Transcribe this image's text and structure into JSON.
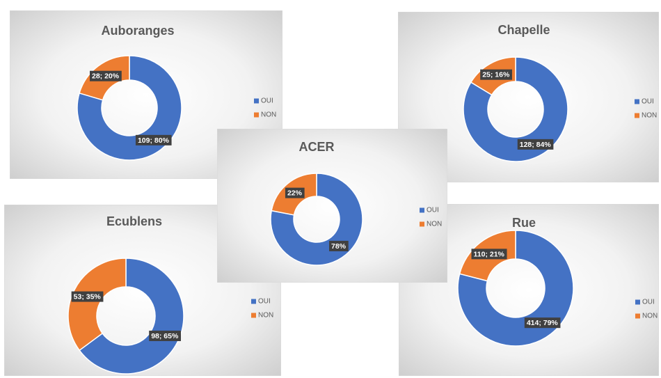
{
  "chart_data": [
    {
      "type": "donut",
      "title": "Auboranges",
      "categories": [
        "OUI",
        "NON"
      ],
      "values": [
        109,
        28
      ],
      "value_labels": [
        "109; 80%",
        "28; 20%"
      ],
      "colors": [
        "#4472c4",
        "#ed7d31"
      ],
      "legend": "right"
    },
    {
      "type": "donut",
      "title": "Chapelle",
      "categories": [
        "OUI",
        "NON"
      ],
      "values": [
        128,
        25
      ],
      "value_labels": [
        "128; 84%",
        "25; 16%"
      ],
      "colors": [
        "#4472c4",
        "#ed7d31"
      ],
      "legend": "right"
    },
    {
      "type": "donut",
      "title": "Ecublens",
      "categories": [
        "OUI",
        "NON"
      ],
      "values": [
        98,
        53
      ],
      "value_labels": [
        "98; 65%",
        "53; 35%"
      ],
      "colors": [
        "#4472c4",
        "#ed7d31"
      ],
      "legend": "right"
    },
    {
      "type": "donut",
      "title": "Rue",
      "categories": [
        "OUI",
        "NON"
      ],
      "values": [
        414,
        110
      ],
      "value_labels": [
        "414; 79%",
        "110; 21%"
      ],
      "colors": [
        "#4472c4",
        "#ed7d31"
      ],
      "legend": "right"
    },
    {
      "type": "donut",
      "title": "ACER",
      "categories": [
        "OUI",
        "NON"
      ],
      "values": [
        78,
        22
      ],
      "value_labels": [
        "78%",
        "22%"
      ],
      "colors": [
        "#4472c4",
        "#ed7d31"
      ],
      "legend": "right"
    }
  ]
}
